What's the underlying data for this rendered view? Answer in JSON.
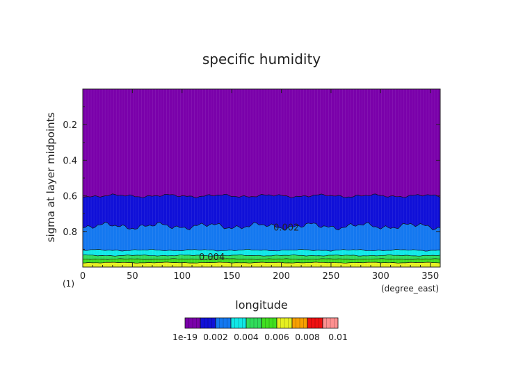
{
  "chart_data": {
    "type": "contour",
    "title": "specific humidity",
    "xlabel": "longitude",
    "ylabel": "sigma at layer midpoints",
    "x_unit": "(degree_east)",
    "y_unit": "(1)",
    "xlim": [
      0,
      360
    ],
    "ylim": [
      1.0,
      0.0
    ],
    "x_ticks": [
      "0",
      "50",
      "100",
      "150",
      "200",
      "250",
      "300",
      "350"
    ],
    "y_ticks": [
      "0.2",
      "0.4",
      "0.6",
      "0.8"
    ],
    "contour_labels": [
      {
        "text": "0.002",
        "lon": 205,
        "sigma": 0.78
      },
      {
        "text": "0.004",
        "lon": 130,
        "sigma": 0.945
      }
    ],
    "levels": [
      0,
      0.001,
      0.002,
      0.003,
      0.004,
      0.005,
      0.006,
      0.007,
      0.008,
      0.009,
      0.01
    ],
    "colors": [
      "#7a00aa",
      "#1010d8",
      "#1478f0",
      "#10e8e8",
      "#30dc5c",
      "#40e020",
      "#e6f020",
      "#f8a000",
      "#f01010",
      "#ff9090"
    ],
    "colorbar_labels": [
      "1e-19",
      "0.002",
      "0.004",
      "0.006",
      "0.008",
      "0.01"
    ],
    "boundaries": [
      {
        "level": 0.001,
        "sigma_mean": 0.6
      },
      {
        "level": 0.002,
        "sigma_mean": 0.77
      },
      {
        "level": 0.003,
        "sigma_mean": 0.905
      },
      {
        "level": 0.004,
        "sigma_mean": 0.935
      },
      {
        "level": 0.005,
        "sigma_mean": 0.955
      },
      {
        "level": 0.006,
        "sigma_mean": 0.975
      }
    ]
  }
}
